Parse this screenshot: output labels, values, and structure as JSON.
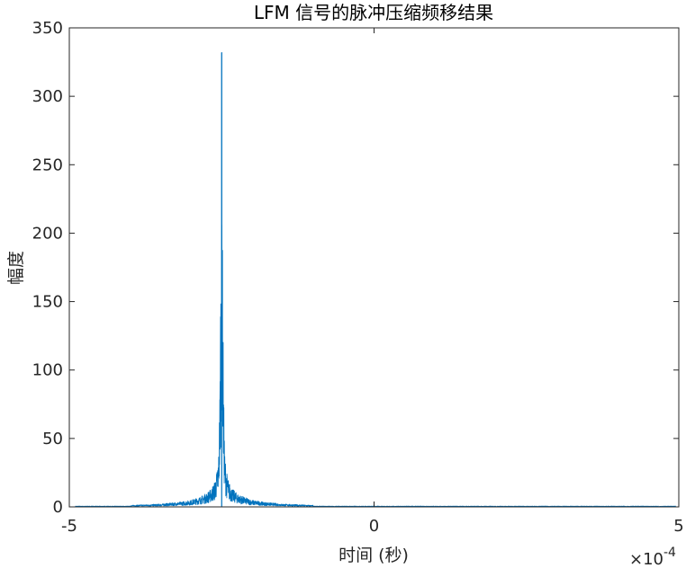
{
  "chart_data": {
    "type": "line",
    "title": "LFM 信号的脉冲压缩频移结果",
    "xlabel": "时间 (秒)",
    "ylabel": "幅度",
    "x_exponent_label": "×10",
    "x_exponent_power": "-4",
    "x_scale": 0.0001,
    "xlim": [
      -5,
      5
    ],
    "ylim": [
      0,
      350
    ],
    "x_ticks": [
      -5,
      0,
      5
    ],
    "x_tick_labels": [
      "-5",
      "0",
      "5"
    ],
    "y_ticks": [
      0,
      50,
      100,
      150,
      200,
      250,
      300,
      350
    ],
    "y_tick_labels": [
      "0",
      "50",
      "100",
      "150",
      "200",
      "250",
      "300",
      "350"
    ],
    "grid": false,
    "box": true,
    "series": [
      {
        "color": "#0072BD",
        "peak_x": -2.5,
        "peak_y": 332,
        "noise_floor": 0.6,
        "noise_extent": [
          -4.9,
          4.95
        ],
        "sidelobe_region": [
          -4.0,
          -1.0
        ],
        "envelope": [
          {
            "dx": 0.0,
            "y": 332
          },
          {
            "dx": 0.01,
            "y": 210
          },
          {
            "dx": 0.02,
            "y": 160
          },
          {
            "dx": 0.03,
            "y": 90
          },
          {
            "dx": 0.05,
            "y": 40
          },
          {
            "dx": 0.08,
            "y": 26
          },
          {
            "dx": 0.12,
            "y": 18
          },
          {
            "dx": 0.18,
            "y": 13
          },
          {
            "dx": 0.25,
            "y": 10
          },
          {
            "dx": 0.35,
            "y": 7.5
          },
          {
            "dx": 0.5,
            "y": 5
          },
          {
            "dx": 0.7,
            "y": 3.5
          },
          {
            "dx": 1.0,
            "y": 2.2
          },
          {
            "dx": 1.5,
            "y": 1.2
          }
        ]
      }
    ]
  }
}
